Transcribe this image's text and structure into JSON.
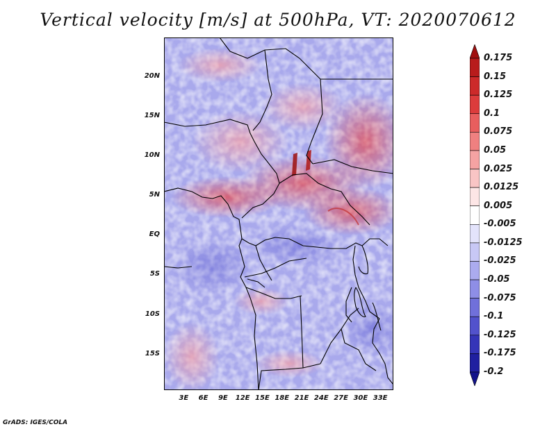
{
  "title": "Vertical velocity [m/s] at 500hPa, VT: 2020070612",
  "credit": "GrADS: IGES/COLA",
  "map": {
    "lat_range": [
      -19.5,
      25
    ],
    "lon_range": [
      0,
      35
    ],
    "lat_ticks": [
      {
        "value": 20,
        "label": "20N"
      },
      {
        "value": 15,
        "label": "15N"
      },
      {
        "value": 10,
        "label": "10N"
      },
      {
        "value": 5,
        "label": "5N"
      },
      {
        "value": 0,
        "label": "EQ"
      },
      {
        "value": -5,
        "label": "5S"
      },
      {
        "value": -10,
        "label": "10S"
      },
      {
        "value": -15,
        "label": "15S"
      }
    ],
    "lon_ticks": [
      {
        "value": 3,
        "label": "3E"
      },
      {
        "value": 6,
        "label": "6E"
      },
      {
        "value": 9,
        "label": "9E"
      },
      {
        "value": 12,
        "label": "12E"
      },
      {
        "value": 15,
        "label": "15E"
      },
      {
        "value": 18,
        "label": "18E"
      },
      {
        "value": 21,
        "label": "21E"
      },
      {
        "value": 24,
        "label": "24E"
      },
      {
        "value": 27,
        "label": "27E"
      },
      {
        "value": 30,
        "label": "30E"
      },
      {
        "value": 33,
        "label": "33E"
      }
    ]
  },
  "colorbar": {
    "labels": [
      "0.175",
      "0.15",
      "0.125",
      "0.1",
      "0.075",
      "0.05",
      "0.025",
      "0.0125",
      "0.005",
      "-0.005",
      "-0.0125",
      "-0.025",
      "-0.05",
      "-0.075",
      "-0.1",
      "-0.125",
      "-0.175",
      "-0.2"
    ],
    "colors": [
      "#a01010",
      "#b81c1c",
      "#cc2a2a",
      "#dc3c3c",
      "#e85e5e",
      "#ef8080",
      "#f5a3a3",
      "#f9c5c5",
      "#fde6e6",
      "#ffffff",
      "#e3e3fb",
      "#c8c8f5",
      "#ababef",
      "#8e8ee6",
      "#7070da",
      "#5252cc",
      "#3535b8",
      "#2020a0",
      "#13138a"
    ]
  }
}
